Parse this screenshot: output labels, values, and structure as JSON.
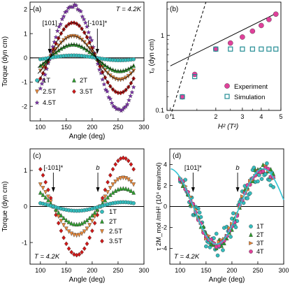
{
  "chart_data": [
    {
      "panel": "(a)",
      "type": "scatter",
      "annotation_T": "T = 4.2K",
      "xlabel": "Angle (deg)",
      "ylabel": "Torque (dyn cm)",
      "xlim": [
        80,
        300
      ],
      "ylim": [
        -2.6,
        2.3
      ],
      "xticks": [
        100,
        150,
        200,
        250,
        300
      ],
      "yticks": [
        -2,
        -1,
        0,
        1,
        2
      ],
      "markers": [
        {
          "text": "[101]",
          "x": 118
        },
        {
          "text": "[-101]*",
          "x": 210
        }
      ],
      "legend_position": "lower-left",
      "series": [
        {
          "name": "1T",
          "color": "#33bdbd",
          "marker": "circle",
          "amplitude": 0.1,
          "x_range": [
            100,
            280
          ]
        },
        {
          "name": "2T",
          "color": "#2e9e2e",
          "marker": "triangle-up",
          "amplitude": 0.55,
          "x_range": [
            100,
            280
          ]
        },
        {
          "name": "2.5T",
          "color": "#e8883a",
          "marker": "triangle-down",
          "amplitude": 0.9,
          "x_range": [
            100,
            280
          ]
        },
        {
          "name": "3.5T",
          "color": "#d01818",
          "marker": "diamond",
          "amplitude": 1.45,
          "x_range": [
            100,
            280
          ]
        },
        {
          "name": "4.5T",
          "color": "#7a2ea8",
          "marker": "star",
          "amplitude": 2.15,
          "x_range": [
            100,
            280
          ]
        }
      ],
      "fit_curves": [
        {
          "amplitude": 1.45
        },
        {
          "amplitude": 0.9
        },
        {
          "amplitude": 0.55
        }
      ]
    },
    {
      "panel": "(b)",
      "type": "scatter",
      "xlabel": "H² (T²)",
      "ylabel": "τ₀ (dyn cm)",
      "xscale": "log",
      "yscale": "log",
      "xlim": [
        1,
        5
      ],
      "ylim": [
        0.1,
        3
      ],
      "xtick_labels": [
        "0",
        "1",
        "2",
        "3",
        "4",
        "5"
      ],
      "ytick_labels": [
        "0.1",
        "1"
      ],
      "series": [
        {
          "name": "Experiment",
          "color": "#e0409a",
          "marker": "circle",
          "points": [
            [
              1.2,
              0.2
            ],
            [
              1.45,
              0.36
            ],
            [
              2.0,
              0.7
            ],
            [
              2.5,
              0.82
            ],
            [
              3.0,
              0.96
            ],
            [
              3.5,
              1.12
            ],
            [
              4.0,
              1.3
            ],
            [
              4.5,
              1.52
            ],
            [
              5.0,
              1.75
            ]
          ]
        },
        {
          "name": "Simulation",
          "color": "#238c94",
          "marker": "square-open",
          "points": [
            [
              1.2,
              0.2
            ],
            [
              1.45,
              0.34
            ],
            [
              2.0,
              0.7
            ],
            [
              2.5,
              0.7
            ],
            [
              3.0,
              0.7
            ],
            [
              3.5,
              0.7
            ],
            [
              4.0,
              0.7
            ],
            [
              4.5,
              0.7
            ],
            [
              5.0,
              0.7
            ]
          ]
        }
      ],
      "fit_lines": [
        {
          "style": "solid",
          "points": [
            [
              1.0,
              0.45
            ],
            [
              5.0,
              1.78
            ]
          ]
        },
        {
          "style": "dashed",
          "points": [
            [
              1.0,
              0.12
            ],
            [
              1.6,
              4.0
            ]
          ]
        }
      ],
      "legend_position": "lower-right"
    },
    {
      "panel": "(c)",
      "type": "scatter",
      "annotation_T": "T = 4.2K",
      "xlabel": "Angle (deg)",
      "ylabel": "Torque (dyn cm)",
      "xlim": [
        80,
        300
      ],
      "ylim": [
        -1.6,
        1.6
      ],
      "xticks": [
        100,
        150,
        200,
        250,
        300
      ],
      "yticks": [
        -1,
        0,
        1
      ],
      "markers": [
        {
          "text": "[-101]*",
          "x": 125
        },
        {
          "text": "b",
          "x": 211
        }
      ],
      "legend_position": "lower-right",
      "series": [
        {
          "name": "1T",
          "color": "#33bdbd",
          "marker": "circle",
          "amplitude": 0.12,
          "x_range": [
            100,
            280
          ]
        },
        {
          "name": "2T",
          "color": "#2e9e2e",
          "marker": "triangle-up",
          "amplitude": 0.5,
          "x_range": [
            100,
            280
          ]
        },
        {
          "name": "2.5T",
          "color": "#e8883a",
          "marker": "triangle-down",
          "amplitude": 0.8,
          "x_range": [
            100,
            280
          ]
        },
        {
          "name": "3.5T",
          "color": "#d01818",
          "marker": "diamond",
          "amplitude": 1.35,
          "x_range": [
            100,
            280
          ]
        }
      ]
    },
    {
      "panel": "(d)",
      "type": "scatter",
      "annotation_T": "T = 4.2K",
      "xlabel": "Angle (deg)",
      "ylabel": "τ 2M_mol /mH² (10⁴ emu/mol)",
      "xlim": [
        80,
        300
      ],
      "ylim": [
        -5.5,
        5.5
      ],
      "xticks": [
        100,
        150,
        200,
        250,
        300
      ],
      "yticks": [
        -4,
        -2,
        0,
        2,
        4
      ],
      "markers": [
        {
          "text": "[101]*",
          "x": 125
        },
        {
          "text": "b",
          "x": 211
        }
      ],
      "legend_position": "lower-right",
      "series": [
        {
          "name": "1T",
          "color": "#33bdbd",
          "marker": "circle"
        },
        {
          "name": "2T",
          "color": "#2e9e2e",
          "marker": "triangle-up"
        },
        {
          "name": "3T",
          "color": "#e8883a",
          "marker": "triangle-right"
        },
        {
          "name": "4T",
          "color": "#e0409a",
          "marker": "circle"
        }
      ],
      "fit_curve": {
        "color": "#33c3d3",
        "amplitude": 3.6
      }
    }
  ]
}
